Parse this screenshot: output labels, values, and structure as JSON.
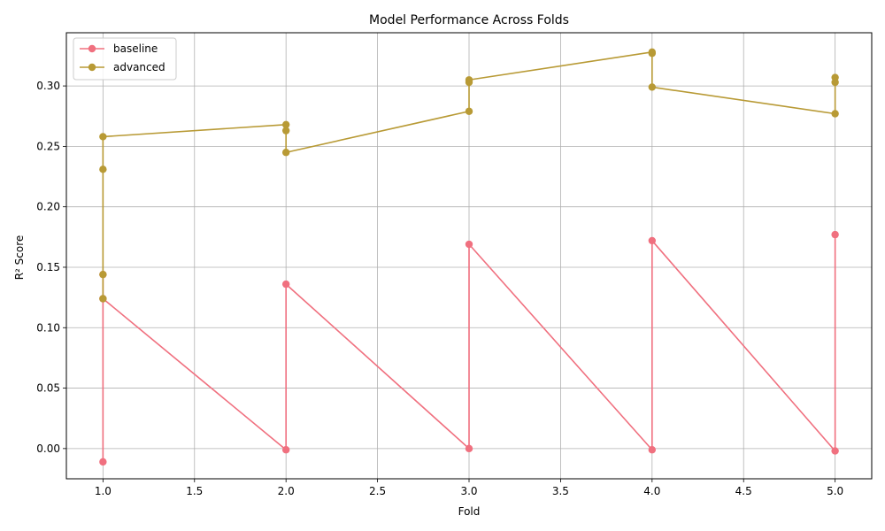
{
  "chart_data": {
    "type": "line",
    "title": "Model Performance Across Folds",
    "xlabel": "Fold",
    "ylabel": "R² Score",
    "xlim": [
      0.8,
      5.2
    ],
    "ylim": [
      -0.025,
      0.344
    ],
    "xticks": [
      1.0,
      1.5,
      2.0,
      2.5,
      3.0,
      3.5,
      4.0,
      4.5,
      5.0
    ],
    "xtick_labels": [
      "1.0",
      "1.5",
      "2.0",
      "2.5",
      "3.0",
      "3.5",
      "4.0",
      "4.5",
      "5.0"
    ],
    "yticks": [
      0.0,
      0.05,
      0.1,
      0.15,
      0.2,
      0.25,
      0.3
    ],
    "ytick_labels": [
      "0.00",
      "0.05",
      "0.10",
      "0.15",
      "0.20",
      "0.25",
      "0.30"
    ],
    "grid": true,
    "legend_position": "top-left",
    "series": [
      {
        "name": "baseline",
        "color": "#f0707f",
        "x": [
          1,
          1,
          1,
          2,
          2,
          3,
          3,
          4,
          4,
          5,
          5
        ],
        "y": [
          -0.011,
          0.144,
          0.124,
          -0.001,
          0.136,
          0.0,
          0.169,
          -0.001,
          0.172,
          -0.002,
          0.177
        ]
      },
      {
        "name": "advanced",
        "color": "#b89a35",
        "x": [
          1,
          1,
          1,
          1,
          2,
          2,
          2,
          3,
          3,
          3,
          4,
          4,
          4,
          5,
          5,
          5
        ],
        "y": [
          0.124,
          0.144,
          0.231,
          0.258,
          0.268,
          0.263,
          0.245,
          0.279,
          0.303,
          0.305,
          0.328,
          0.327,
          0.299,
          0.277,
          0.303,
          0.307
        ]
      }
    ]
  }
}
